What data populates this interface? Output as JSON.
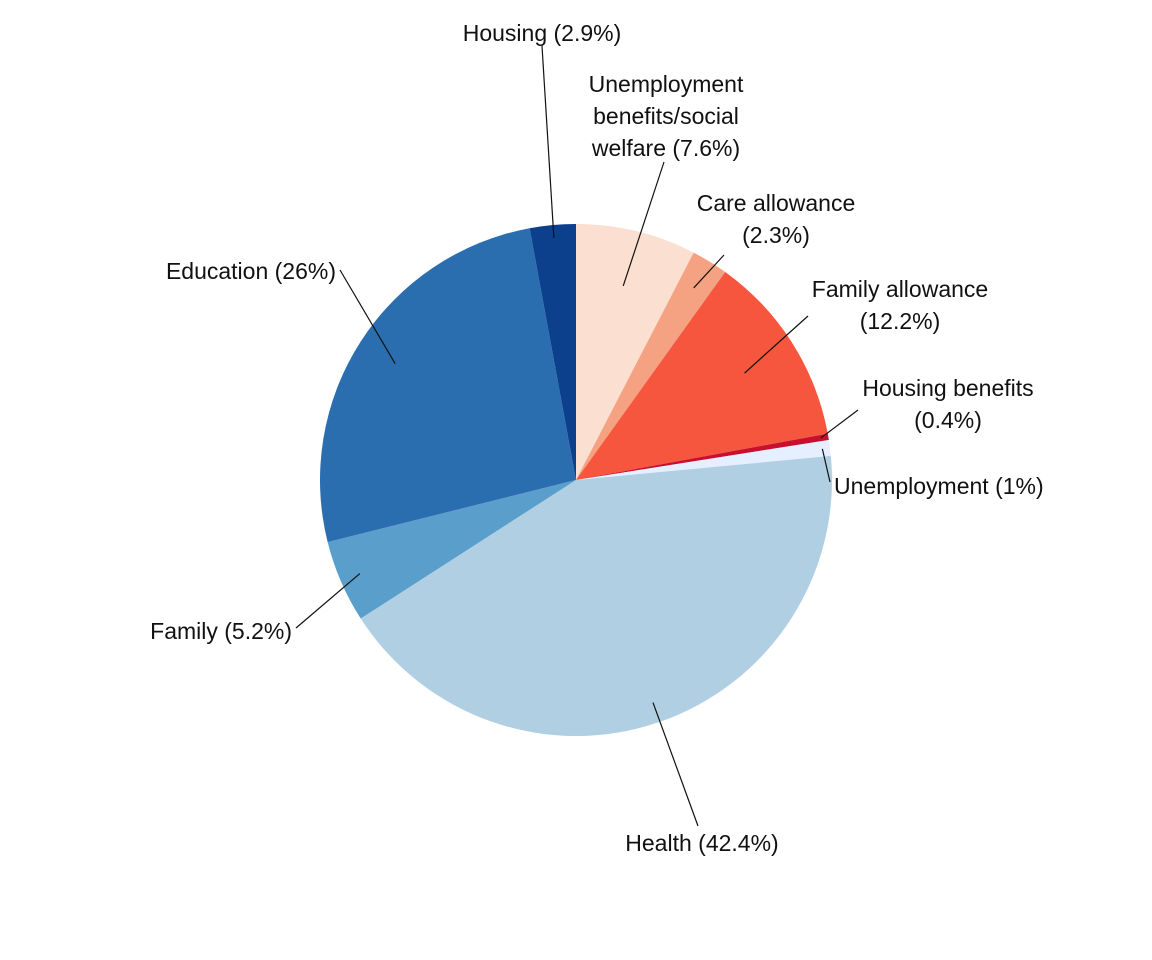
{
  "chart_data": {
    "type": "pie",
    "title": "",
    "start_angle_deg": 0,
    "direction": "clockwise",
    "grid": false,
    "legend": "none",
    "slices": [
      {
        "key": "unemployment-benefits-social-welfare",
        "label": "Unemployment benefits/social welfare (7.6%)",
        "label_lines": [
          "Unemployment",
          "benefits/social",
          "welfare (7.6%)"
        ],
        "value": 7.6,
        "color": "#fbdfd1"
      },
      {
        "key": "care-allowance",
        "label": "Care allowance (2.3%)",
        "label_lines": [
          "Care allowance",
          "(2.3%)"
        ],
        "value": 2.3,
        "color": "#f5a283"
      },
      {
        "key": "family-allowance",
        "label": "Family allowance (12.2%)",
        "label_lines": [
          "Family allowance",
          "(12.2%)"
        ],
        "value": 12.2,
        "color": "#f6553e"
      },
      {
        "key": "housing-benefits",
        "label": "Housing benefits (0.4%)",
        "label_lines": [
          "Housing benefits",
          "(0.4%)"
        ],
        "value": 0.4,
        "color": "#c8102e"
      },
      {
        "key": "unemployment",
        "label": "Unemployment (1%)",
        "label_lines": [
          "Unemployment (1%)"
        ],
        "value": 1.0,
        "color": "#e6efff"
      },
      {
        "key": "health",
        "label": "Health (42.4%)",
        "label_lines": [
          "Health (42.4%)"
        ],
        "value": 42.4,
        "color": "#b0cfe2"
      },
      {
        "key": "family",
        "label": "Family (5.2%)",
        "label_lines": [
          "Family (5.2%)"
        ],
        "value": 5.2,
        "color": "#5a9fcb"
      },
      {
        "key": "education",
        "label": "Education (26%)",
        "label_lines": [
          "Education (26%)"
        ],
        "value": 26.0,
        "color": "#2a6eb0"
      },
      {
        "key": "housing",
        "label": "Housing (2.9%)",
        "label_lines": [
          "Housing (2.9%)"
        ],
        "value": 2.9,
        "color": "#0c3f8c"
      }
    ]
  }
}
